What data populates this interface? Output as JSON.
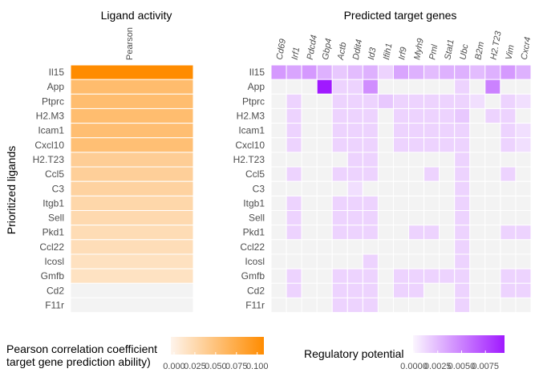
{
  "chart_data": [
    {
      "type": "heatmap",
      "title": "Ligand activity",
      "ylabel": "Prioritized ligands",
      "columns": [
        "Pearson"
      ],
      "rows": [
        "Il15",
        "App",
        "Ptprc",
        "H2.M3",
        "Icam1",
        "Cxcl10",
        "H2.T23",
        "Ccl5",
        "C3",
        "Itgb1",
        "Sell",
        "Pkd1",
        "Ccl22",
        "Icosl",
        "Gmfb",
        "Cd2",
        "F11r"
      ],
      "values": [
        0.108,
        0.058,
        0.057,
        0.057,
        0.056,
        0.055,
        0.04,
        0.038,
        0.035,
        0.03,
        0.028,
        0.025,
        0.024,
        0.02,
        0.019,
        0.002,
        0.001
      ],
      "colorbar": {
        "label_line1": "Pearson correlation coefficient",
        "label_line2": "target gene prediction ability)",
        "tick_labels": [
          "0.000",
          "0.025",
          "0.050",
          "0.075",
          "0.100"
        ],
        "ticks": [
          0,
          0.025,
          0.05,
          0.075,
          0.1
        ],
        "range": [
          0,
          0.108
        ],
        "color_low": "#fef4ec",
        "color_high": "#ff8c00"
      }
    },
    {
      "type": "heatmap",
      "title": "Predicted target genes",
      "rows": [
        "Il15",
        "App",
        "Ptprc",
        "H2.M3",
        "Icam1",
        "Cxcl10",
        "H2.T23",
        "Ccl5",
        "C3",
        "Itgb1",
        "Sell",
        "Pkd1",
        "Ccl22",
        "Icosl",
        "Gmfb",
        "Cd2",
        "F11r"
      ],
      "columns": [
        "Cd69",
        "Irf1",
        "Pdcd4",
        "Gbp4",
        "Actb",
        "Ddit4",
        "Id3",
        "Ifih1",
        "Irf9",
        "Myh9",
        "Pml",
        "Stat1",
        "Ubc",
        "B2m",
        "H2.T23",
        "Vim",
        "Cxcr4"
      ],
      "values": [
        [
          0.004,
          0.0035,
          0.004,
          0.003,
          0.002,
          0.0025,
          0.003,
          0.0015,
          0.0035,
          0.003,
          0.0025,
          0.003,
          0.003,
          0.0025,
          0.003,
          0.004,
          0.003
        ],
        [
          0,
          0,
          0,
          0.0095,
          0.0015,
          0.0015,
          0.0045,
          0,
          0,
          0,
          0,
          0,
          0.0015,
          0,
          0.005,
          0,
          0
        ],
        [
          0,
          0.0015,
          0,
          0,
          0.0015,
          0.0015,
          0.0015,
          0.002,
          0.0015,
          0.0015,
          0.0015,
          0.0015,
          0.0015,
          0.001,
          0,
          0.0015,
          0.001
        ],
        [
          0,
          0.0015,
          0,
          0,
          0.0015,
          0.0015,
          0.0015,
          0,
          0.0015,
          0.0015,
          0.0015,
          0.0015,
          0.002,
          0,
          0.0015,
          0.0015,
          0
        ],
        [
          0,
          0.0015,
          0,
          0,
          0.0015,
          0.0015,
          0.0015,
          0,
          0.0015,
          0.0015,
          0.0015,
          0.0015,
          0.0015,
          0,
          0,
          0.0015,
          0.001
        ],
        [
          0,
          0.0015,
          0,
          0,
          0.0015,
          0.0015,
          0.0015,
          0,
          0.0015,
          0.0015,
          0.0015,
          0.0015,
          0.0015,
          0,
          0,
          0.0015,
          0.001
        ],
        [
          0,
          0,
          0,
          0,
          0,
          0.0015,
          0.0015,
          0,
          0,
          0,
          0,
          0,
          0.0015,
          0,
          0,
          0,
          0
        ],
        [
          0,
          0.0015,
          0,
          0,
          0.0015,
          0.0015,
          0.0015,
          0,
          0,
          0,
          0.0015,
          0,
          0.0015,
          0,
          0,
          0.0015,
          0
        ],
        [
          0,
          0,
          0,
          0,
          0,
          0.001,
          0,
          0,
          0,
          0,
          0,
          0,
          0.0015,
          0,
          0,
          0,
          0
        ],
        [
          0,
          0.0015,
          0,
          0,
          0.0015,
          0.0015,
          0.0015,
          0,
          0,
          0,
          0,
          0,
          0.0015,
          0,
          0,
          0,
          0
        ],
        [
          0,
          0.0015,
          0,
          0,
          0.0015,
          0.0015,
          0.0015,
          0,
          0,
          0,
          0,
          0,
          0.0015,
          0,
          0,
          0,
          0
        ],
        [
          0,
          0.0015,
          0,
          0,
          0.0015,
          0.0015,
          0.0015,
          0,
          0,
          0.0015,
          0.0015,
          0,
          0.0015,
          0,
          0,
          0.0015,
          0.0015
        ],
        [
          0,
          0,
          0,
          0,
          0,
          0,
          0,
          0,
          0,
          0,
          0,
          0,
          0.0015,
          0,
          0,
          0,
          0
        ],
        [
          0,
          0,
          0,
          0,
          0,
          0,
          0.0015,
          0,
          0,
          0,
          0,
          0,
          0.0015,
          0,
          0,
          0,
          0
        ],
        [
          0,
          0.0015,
          0,
          0,
          0.0015,
          0.0015,
          0.0015,
          0,
          0.0015,
          0.0015,
          0.0015,
          0.0015,
          0.0015,
          0,
          0,
          0.0015,
          0.0015
        ],
        [
          0,
          0.0015,
          0,
          0,
          0.0015,
          0.0015,
          0.0015,
          0,
          0.0015,
          0.0015,
          0,
          0,
          0.0015,
          0,
          0,
          0.0015,
          0.0015
        ],
        [
          0,
          0,
          0,
          0,
          0.0015,
          0.0015,
          0.0015,
          0,
          0,
          0,
          0,
          0,
          0.0015,
          0,
          0,
          0,
          0
        ]
      ],
      "colorbar": {
        "label": "Regulatory potential",
        "tick_labels": [
          "0.0000",
          "0.0025",
          "0.0050",
          "0.0075"
        ],
        "ticks": [
          0,
          0.0025,
          0.005,
          0.0075
        ],
        "range": [
          0,
          0.0095
        ],
        "color_low": "#fbf6fe",
        "color_high": "#a01aff"
      }
    }
  ],
  "colors": {
    "empty_cell": "#f3f3f3",
    "cell_border": "#ffffff",
    "text": "#4d4d4d"
  }
}
